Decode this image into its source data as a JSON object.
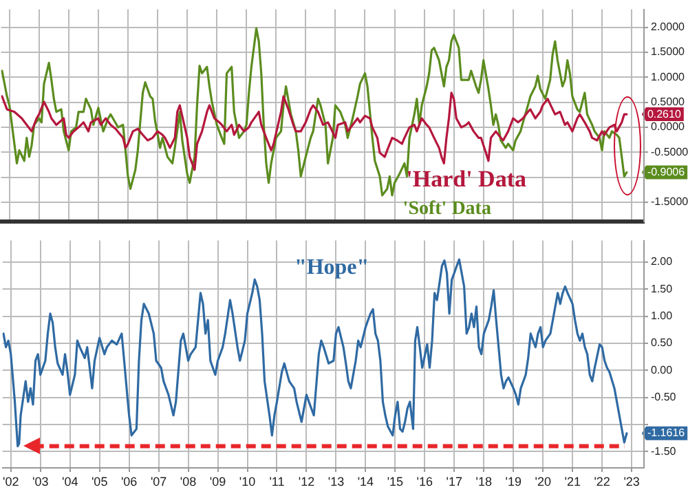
{
  "chart_data": [
    {
      "type": "line",
      "xlim": [
        "2002-03-20",
        "2023-12-01"
      ],
      "ylim": [
        -1.89,
        2.36
      ],
      "tick_labels": "y",
      "grid": true,
      "legend": false,
      "marker": "none",
      "line_style": "solid",
      "xticks": [
        {
          "value": "2002-07-01",
          "label": null
        },
        {
          "value": "2003-07-01",
          "label": null
        },
        {
          "value": "2004-07-01",
          "label": null
        },
        {
          "value": "2005-07-01",
          "label": null
        },
        {
          "value": "2006-07-01",
          "label": null
        },
        {
          "value": "2007-07-01",
          "label": null
        },
        {
          "value": "2008-07-01",
          "label": null
        },
        {
          "value": "2009-07-01",
          "label": null
        },
        {
          "value": "2010-07-01",
          "label": null
        },
        {
          "value": "2011-07-01",
          "label": null
        },
        {
          "value": "2012-07-01",
          "label": null
        },
        {
          "value": "2013-07-01",
          "label": null
        },
        {
          "value": "2014-07-01",
          "label": null
        },
        {
          "value": "2015-07-01",
          "label": null
        },
        {
          "value": "2016-07-01",
          "label": null
        },
        {
          "value": "2017-07-01",
          "label": null
        },
        {
          "value": "2018-07-01",
          "label": null
        },
        {
          "value": "2019-07-01",
          "label": null
        },
        {
          "value": "2020-07-01",
          "label": null
        },
        {
          "value": "2021-07-01",
          "label": null
        },
        {
          "value": "2022-07-01",
          "label": null
        },
        {
          "value": "2023-07-01",
          "label": null
        }
      ],
      "yticks": [
        {
          "value": 2,
          "label": "2.0000"
        },
        {
          "value": 1.5,
          "label": "1.5000"
        },
        {
          "value": 1,
          "label": "1.0000"
        },
        {
          "value": 0.5,
          "label": "0.5000"
        },
        {
          "value": 0,
          "label": "0.0000"
        },
        {
          "value": -0.5,
          "label": "-0.5000"
        },
        {
          "value": -1,
          "label": null
        },
        {
          "value": -1.5,
          "label": "-1.5000"
        }
      ],
      "annotations": [
        {
          "text": "0.2610",
          "x": "2023-05",
          "y": 0.261
        },
        {
          "text": "-0.9006",
          "x": "2023-05",
          "y": -0.9006
        }
      ],
      "series": [
        {
          "name": "'Hard' Data",
          "color": "#b5173d",
          "x": [
            "2002-04",
            "2002-06",
            "2002-09",
            "2002-12",
            "2003-02",
            "2003-04",
            "2003-06",
            "2003-07",
            "2003-09",
            "2003-11",
            "2003-12",
            "2004-02",
            "2004-05",
            "2004-06",
            "2004-07",
            "2004-09",
            "2004-11",
            "2005-01",
            "2005-03",
            "2005-04",
            "2005-07",
            "2005-08",
            "2005-10",
            "2005-12",
            "2006-02",
            "2006-05",
            "2006-06",
            "2006-07",
            "2006-09",
            "2006-11",
            "2007-01",
            "2007-03",
            "2007-05",
            "2007-07",
            "2007-09",
            "2007-10",
            "2007-12",
            "2008-02",
            "2008-03",
            "2008-04",
            "2008-07",
            "2008-08",
            "2008-10",
            "2008-11",
            "2009-01",
            "2009-03",
            "2009-04",
            "2009-06",
            "2009-08",
            "2009-09",
            "2009-11",
            "2010-01",
            "2010-02",
            "2010-04",
            "2010-06",
            "2010-08",
            "2010-09",
            "2010-12",
            "2011-01",
            "2011-03",
            "2011-05",
            "2011-06",
            "2011-09",
            "2011-10",
            "2011-12",
            "2012-02",
            "2012-03",
            "2012-05",
            "2012-07",
            "2012-09",
            "2012-10",
            "2012-12",
            "2013-02",
            "2013-04",
            "2013-05",
            "2013-07",
            "2013-08",
            "2013-11",
            "2013-12",
            "2014-02",
            "2014-04",
            "2014-05",
            "2014-07",
            "2014-09",
            "2014-10",
            "2014-12",
            "2015-01",
            "2015-03",
            "2015-04",
            "2015-06",
            "2015-08",
            "2015-10",
            "2015-11",
            "2016-01",
            "2016-03",
            "2016-04",
            "2016-06",
            "2016-08",
            "2016-09",
            "2016-11",
            "2017-01",
            "2017-02",
            "2017-03",
            "2017-04",
            "2017-05",
            "2017-06",
            "2017-07",
            "2017-08",
            "2017-10",
            "2017-12",
            "2018-01",
            "2018-03",
            "2018-05",
            "2018-06",
            "2018-08",
            "2018-09",
            "2018-10",
            "2018-12",
            "2019-02",
            "2019-03",
            "2019-05",
            "2019-07",
            "2019-09",
            "2019-11",
            "2020-01",
            "2020-02",
            "2020-04",
            "2020-06",
            "2020-07",
            "2020-09",
            "2020-11",
            "2020-12",
            "2021-02",
            "2021-04",
            "2021-05",
            "2021-07",
            "2021-09",
            "2021-10",
            "2021-12",
            "2022-02",
            "2022-03",
            "2022-05",
            "2022-07",
            "2022-08",
            "2022-10",
            "2022-12",
            "2023-01",
            "2023-03",
            "2023-04",
            "2023-05"
          ],
          "values": [
            0.62,
            0.36,
            0.31,
            0.18,
            0.05,
            -0.08,
            0.18,
            0.26,
            0.51,
            0.31,
            0.18,
            0.05,
            0.18,
            -0.15,
            -0.21,
            -0.08,
            0.0,
            0.1,
            -0.08,
            0.1,
            0.18,
            0.05,
            0.18,
            0.05,
            -0.03,
            -0.21,
            -0.41,
            -0.33,
            -0.08,
            -0.03,
            -0.15,
            -0.26,
            -0.21,
            -0.08,
            -0.15,
            -0.21,
            -0.41,
            -0.21,
            0.31,
            0.44,
            -0.21,
            -0.59,
            -0.85,
            -0.33,
            -0.08,
            0.31,
            0.44,
            0.18,
            0.1,
            0.05,
            -0.08,
            0.05,
            -0.15,
            0.05,
            -0.08,
            0.0,
            0.1,
            0.31,
            0.05,
            -0.21,
            -0.46,
            -0.33,
            0.31,
            0.62,
            0.36,
            0.05,
            -0.08,
            -0.08,
            0.1,
            0.36,
            0.44,
            0.31,
            0.05,
            0.1,
            0.0,
            -0.21,
            0.05,
            0.1,
            -0.08,
            0.05,
            0.18,
            0.1,
            0.23,
            0.18,
            0.0,
            -0.21,
            -0.51,
            -0.59,
            -0.46,
            -0.21,
            -0.26,
            -0.33,
            -0.21,
            0.0,
            0.05,
            -0.08,
            0.18,
            0.05,
            0.0,
            -0.21,
            -0.41,
            -0.59,
            -0.72,
            -0.21,
            0.18,
            0.69,
            0.57,
            0.18,
            0.0,
            0.05,
            0.1,
            -0.08,
            -0.21,
            -0.21,
            -0.51,
            -0.67,
            -0.21,
            -0.08,
            -0.21,
            -0.26,
            -0.08,
            0.18,
            0.1,
            0.18,
            0.31,
            0.36,
            0.18,
            0.31,
            0.44,
            0.57,
            0.36,
            0.26,
            0.31,
            0.05,
            0.1,
            -0.08,
            0.18,
            0.26,
            0.1,
            -0.08,
            -0.21,
            -0.26,
            -0.08,
            -0.15,
            0.0,
            0.05,
            -0.08,
            0.1,
            0.26,
            0.261
          ]
        },
        {
          "name": "'Soft' Data",
          "color": "#5b8c1e",
          "x": [
            "2002-04",
            "2002-06",
            "2002-07",
            "2002-09",
            "2002-10",
            "2002-11",
            "2003-01",
            "2003-02",
            "2003-03",
            "2003-04",
            "2003-05",
            "2003-07",
            "2003-08",
            "2003-09",
            "2003-11",
            "2003-12",
            "2004-01",
            "2004-02",
            "2004-04",
            "2004-05",
            "2004-07",
            "2004-08",
            "2004-10",
            "2004-11",
            "2005-01",
            "2005-02",
            "2005-04",
            "2005-05",
            "2005-07",
            "2005-09",
            "2005-11",
            "2005-12",
            "2006-03",
            "2006-05",
            "2006-06",
            "2006-07",
            "2006-08",
            "2006-10",
            "2006-11",
            "2007-01",
            "2007-02",
            "2007-04",
            "2007-05",
            "2007-06",
            "2007-08",
            "2007-09",
            "2007-11",
            "2008-01",
            "2008-02",
            "2008-04",
            "2008-05",
            "2008-07",
            "2008-08",
            "2008-10",
            "2008-11",
            "2008-12",
            "2009-01",
            "2009-03",
            "2009-04",
            "2009-05",
            "2009-07",
            "2009-09",
            "2009-10",
            "2009-11",
            "2010-01",
            "2010-02",
            "2010-04",
            "2010-06",
            "2010-07",
            "2010-08",
            "2010-09",
            "2010-11",
            "2010-12",
            "2011-01",
            "2011-02",
            "2011-03",
            "2011-04",
            "2011-05",
            "2011-07",
            "2011-09",
            "2011-10",
            "2011-11",
            "2012-01",
            "2012-03",
            "2012-04",
            "2012-05",
            "2012-07",
            "2012-09",
            "2012-10",
            "2012-12",
            "2013-01",
            "2013-03",
            "2013-04",
            "2013-06",
            "2013-07",
            "2013-09",
            "2013-11",
            "2013-12",
            "2014-02",
            "2014-04",
            "2014-05",
            "2014-07",
            "2014-08",
            "2014-09",
            "2014-10",
            "2014-11",
            "2015-01",
            "2015-02",
            "2015-04",
            "2015-05",
            "2015-06",
            "2015-07",
            "2015-09",
            "2015-11",
            "2015-12",
            "2016-01",
            "2016-03",
            "2016-04",
            "2016-05",
            "2016-06",
            "2016-08",
            "2016-09",
            "2016-10",
            "2016-11",
            "2017-01",
            "2017-02",
            "2017-03",
            "2017-04",
            "2017-05",
            "2017-06",
            "2017-07",
            "2017-09",
            "2017-10",
            "2017-11",
            "2018-01",
            "2018-02",
            "2018-04",
            "2018-05",
            "2018-06",
            "2018-07",
            "2018-09",
            "2018-10",
            "2018-11",
            "2018-12",
            "2019-01",
            "2019-02",
            "2019-04",
            "2019-05",
            "2019-07",
            "2019-08",
            "2019-10",
            "2019-11",
            "2020-01",
            "2020-02",
            "2020-04",
            "2020-05",
            "2020-06",
            "2020-08",
            "2020-10",
            "2020-11",
            "2020-12",
            "2021-01",
            "2021-03",
            "2021-04",
            "2021-05",
            "2021-06",
            "2021-07",
            "2021-09",
            "2021-10",
            "2021-12",
            "2022-01",
            "2022-03",
            "2022-04",
            "2022-06",
            "2022-07",
            "2022-08",
            "2022-10",
            "2022-11",
            "2023-01",
            "2023-02",
            "2023-03",
            "2023-04",
            "2023-05"
          ],
          "values": [
            1.13,
            0.62,
            0.44,
            -0.33,
            -0.72,
            -0.46,
            -0.67,
            -0.21,
            -0.59,
            -0.36,
            0.05,
            0.18,
            0.1,
            0.87,
            1.29,
            0.95,
            0.57,
            0.31,
            0.36,
            -0.08,
            -0.46,
            -0.08,
            0.0,
            0.31,
            0.31,
            0.57,
            0.36,
            0.05,
            0.39,
            -0.08,
            0.18,
            0.26,
            0.0,
            0.05,
            -0.46,
            -0.98,
            -1.23,
            -0.85,
            -0.46,
            0.69,
            0.9,
            0.62,
            0.57,
            0.13,
            -0.41,
            -0.21,
            -0.59,
            -0.72,
            -0.41,
            0.31,
            -0.26,
            -0.93,
            -1.11,
            -0.59,
            0.44,
            1.23,
            1.08,
            1.21,
            0.82,
            0.51,
            0.05,
            -0.21,
            -0.33,
            1.08,
            1.21,
            0.31,
            -0.21,
            -0.08,
            0.05,
            0.69,
            1.21,
            1.98,
            1.72,
            1.08,
            0.05,
            -0.72,
            -1.11,
            -0.72,
            -0.21,
            -0.08,
            0.44,
            0.82,
            0.26,
            -0.08,
            -0.46,
            -0.98,
            -0.59,
            -0.21,
            -0.08,
            0.57,
            0.44,
            0.05,
            -0.72,
            -0.21,
            0.44,
            0.31,
            0.05,
            -0.21,
            0.18,
            0.62,
            0.87,
            1.08,
            0.82,
            0.31,
            -0.21,
            -0.67,
            -0.98,
            -1.36,
            -1.23,
            -0.98,
            -1.36,
            -1.11,
            -0.93,
            -0.72,
            -0.98,
            -0.21,
            0.26,
            0.57,
            0.05,
            0.44,
            0.82,
            1.08,
            1.54,
            1.59,
            1.34,
            1.08,
            0.82,
            1.21,
            1.34,
            1.72,
            1.85,
            1.59,
            0.95,
            0.95,
            0.95,
            1.13,
            0.82,
            0.69,
            0.95,
            1.34,
            0.77,
            0.44,
            0.05,
            0.26,
            0.05,
            -0.26,
            -0.41,
            -0.33,
            -0.46,
            -0.26,
            -0.08,
            0.1,
            0.44,
            0.62,
            0.82,
            1.03,
            0.77,
            0.57,
            0.95,
            1.46,
            1.72,
            1.34,
            0.82,
            0.95,
            1.34,
            1.08,
            0.62,
            0.36,
            0.31,
            0.69,
            0.26,
            0.05,
            -0.08,
            -0.21,
            -0.46,
            -0.08,
            -0.21,
            -0.08,
            -0.15,
            -0.21,
            -0.59,
            -0.98,
            -0.9006
          ]
        }
      ]
    },
    {
      "type": "line",
      "xlim": [
        "2002-03-20",
        "2023-12-01"
      ],
      "ylim": [
        -1.8,
        2.4
      ],
      "grid": true,
      "legend": false,
      "marker": "none",
      "line_style": "solid",
      "xticks": [
        {
          "value": "2002-07-01",
          "label": "'02"
        },
        {
          "value": "2003-07-01",
          "label": "'03"
        },
        {
          "value": "2004-07-01",
          "label": "'04"
        },
        {
          "value": "2005-07-01",
          "label": "'05"
        },
        {
          "value": "2006-07-01",
          "label": "'06"
        },
        {
          "value": "2007-07-01",
          "label": "'07"
        },
        {
          "value": "2008-07-01",
          "label": "'08"
        },
        {
          "value": "2009-07-01",
          "label": "'09"
        },
        {
          "value": "2010-07-01",
          "label": "'10"
        },
        {
          "value": "2011-07-01",
          "label": "'11"
        },
        {
          "value": "2012-07-01",
          "label": "'12"
        },
        {
          "value": "2013-07-01",
          "label": "'13"
        },
        {
          "value": "2014-07-01",
          "label": "'14"
        },
        {
          "value": "2015-07-01",
          "label": "'15"
        },
        {
          "value": "2016-07-01",
          "label": "'16"
        },
        {
          "value": "2017-07-01",
          "label": "'17"
        },
        {
          "value": "2018-07-01",
          "label": "'18"
        },
        {
          "value": "2019-07-01",
          "label": "'19"
        },
        {
          "value": "2020-07-01",
          "label": "'20"
        },
        {
          "value": "2021-07-01",
          "label": "'21"
        },
        {
          "value": "2022-07-01",
          "label": "'22"
        },
        {
          "value": "2023-07-01",
          "label": "'23"
        }
      ],
      "yticks": [
        {
          "value": 2,
          "label": "2.00"
        },
        {
          "value": 1.5,
          "label": "1.50"
        },
        {
          "value": 1,
          "label": "1.00"
        },
        {
          "value": 0.5,
          "label": "0.50"
        },
        {
          "value": 0,
          "label": "0.00"
        },
        {
          "value": -0.5,
          "label": "-0.50"
        },
        {
          "value": -1,
          "label": null
        },
        {
          "value": -1.5,
          "label": "-1.50"
        }
      ],
      "annotations": [
        {
          "text": "-1.1616",
          "x": "2023-05",
          "y": -1.1616
        }
      ],
      "ref_lines": [
        {
          "axis": "y",
          "value": -1.4,
          "color": "#e8262a",
          "line_style": "dashed"
        }
      ],
      "series": [
        {
          "name": "\"Hope\"",
          "color": "#2f6aa3",
          "x": [
            "2002-04",
            "2002-05",
            "2002-06",
            "2002-07",
            "2002-08-20",
            "2002-09-05",
            "2002-09-25",
            "2002-10-12",
            "2002-11",
            "2003-01",
            "2003-02",
            "2003-03",
            "2003-04",
            "2003-05",
            "2003-06",
            "2003-07",
            "2003-09",
            "2003-10",
            "2003-11",
            "2003-12",
            "2004-01",
            "2004-02",
            "2004-04",
            "2004-05",
            "2004-06",
            "2004-07",
            "2004-09",
            "2004-10",
            "2004-11",
            "2005-01",
            "2005-02",
            "2005-03",
            "2005-04",
            "2005-05",
            "2005-07",
            "2005-09",
            "2005-10",
            "2005-12",
            "2006-02",
            "2006-04",
            "2006-05",
            "2006-06",
            "2006-07",
            "2006-08",
            "2006-10",
            "2006-11",
            "2006-12",
            "2007-01",
            "2007-03",
            "2007-05",
            "2007-06",
            "2007-08",
            "2007-09",
            "2007-11",
            "2008-01",
            "2008-02",
            "2008-04",
            "2008-05",
            "2008-07",
            "2008-08",
            "2008-10",
            "2008-12",
            "2009-01",
            "2009-02",
            "2009-03",
            "2009-04",
            "2009-06",
            "2009-07",
            "2009-09",
            "2009-10",
            "2009-12",
            "2010-01",
            "2010-03",
            "2010-04",
            "2010-06",
            "2010-07",
            "2010-09",
            "2010-10",
            "2010-11",
            "2010-12",
            "2011-01",
            "2011-02",
            "2011-04",
            "2011-05",
            "2011-06",
            "2011-07",
            "2011-09",
            "2011-10",
            "2011-12",
            "2012-02",
            "2012-03",
            "2012-05",
            "2012-07",
            "2012-08",
            "2012-10",
            "2012-12",
            "2013-01",
            "2013-02",
            "2013-04",
            "2013-06",
            "2013-07",
            "2013-08",
            "2013-10",
            "2013-11",
            "2013-12",
            "2014-01",
            "2014-03",
            "2014-04",
            "2014-05",
            "2014-07",
            "2014-08",
            "2014-09",
            "2014-10",
            "2014-11",
            "2014-12",
            "2015-01",
            "2015-02",
            "2015-03",
            "2015-04",
            "2015-06",
            "2015-07",
            "2015-08",
            "2015-09",
            "2015-10",
            "2015-11",
            "2015-12",
            "2016-01",
            "2016-02-10",
            "2016-03-05",
            "2016-04",
            "2016-05",
            "2016-06",
            "2016-08",
            "2016-09",
            "2016-10",
            "2016-11",
            "2016-12",
            "2017-02",
            "2017-03",
            "2017-04",
            "2017-05",
            "2017-06",
            "2017-07",
            "2017-08",
            "2017-09",
            "2017-11",
            "2017-12",
            "2018-01",
            "2018-02",
            "2018-03",
            "2018-04",
            "2018-05",
            "2018-06",
            "2018-07",
            "2018-09",
            "2018-10",
            "2018-11",
            "2018-12",
            "2019-01",
            "2019-02",
            "2019-03",
            "2019-04",
            "2019-05",
            "2019-07",
            "2019-08",
            "2019-09",
            "2019-10",
            "2019-12",
            "2020-01",
            "2020-02",
            "2020-03",
            "2020-04",
            "2020-05",
            "2020-06",
            "2020-07",
            "2020-08",
            "2020-10",
            "2020-11",
            "2020-12",
            "2021-01",
            "2021-02",
            "2021-03",
            "2021-04",
            "2021-05",
            "2021-07",
            "2021-08",
            "2021-09",
            "2021-10",
            "2021-11",
            "2021-12",
            "2022-01",
            "2022-02",
            "2022-03",
            "2022-04",
            "2022-06",
            "2022-07",
            "2022-08",
            "2022-09",
            "2022-10",
            "2022-12",
            "2023-01",
            "2023-02",
            "2023-03",
            "2023-04",
            "2023-05"
          ],
          "values": [
            0.68,
            0.43,
            0.55,
            0.3,
            -0.58,
            -0.95,
            -1.4,
            -1.35,
            -0.83,
            -0.2,
            -0.58,
            -0.33,
            -0.63,
            0.18,
            0.3,
            -0.08,
            0.18,
            0.68,
            1.05,
            0.88,
            0.43,
            0.13,
            -0.08,
            0.3,
            -0.03,
            -0.45,
            -0.08,
            0.55,
            0.43,
            0.23,
            0.43,
            0.05,
            -0.33,
            0.18,
            0.6,
            0.3,
            0.43,
            0.55,
            0.48,
            0.68,
            0.18,
            -0.33,
            -0.83,
            -1.2,
            -1.08,
            0.18,
            0.93,
            1.23,
            1.05,
            0.68,
            0.18,
            0.05,
            -0.2,
            -0.45,
            -0.83,
            -0.58,
            0.55,
            0.68,
            0.18,
            0.3,
            0.43,
            1.43,
            1.23,
            0.68,
            0.93,
            0.18,
            -0.08,
            0.18,
            0.43,
            0.68,
            1.3,
            1.05,
            0.43,
            0.18,
            0.55,
            1.05,
            1.43,
            1.68,
            1.55,
            1.3,
            0.68,
            -0.2,
            -0.83,
            -1.2,
            -0.83,
            -0.58,
            -0.03,
            0.13,
            -0.2,
            -0.33,
            -0.58,
            -0.95,
            -0.45,
            -0.58,
            -0.83,
            0.3,
            0.55,
            0.43,
            0.13,
            0.18,
            0.68,
            0.8,
            0.43,
            0.13,
            -0.2,
            -0.33,
            0.18,
            0.55,
            0.43,
            0.8,
            0.93,
            1.05,
            1.13,
            0.68,
            0.55,
            0.18,
            -0.58,
            -0.83,
            -1.03,
            -1.2,
            -0.83,
            -0.58,
            -1.08,
            -1.13,
            -0.95,
            -0.7,
            -0.58,
            -1.08,
            0.55,
            0.8,
            0.43,
            0.05,
            0.48,
            0.05,
            0.55,
            1.43,
            1.3,
            1.93,
            2.03,
            1.8,
            1.05,
            1.68,
            1.8,
            1.93,
            2.05,
            1.55,
            0.68,
            0.8,
            1.05,
            0.8,
            1.18,
            0.43,
            0.3,
            0.68,
            0.93,
            1.18,
            1.48,
            0.93,
            0.43,
            -0.08,
            -0.33,
            -0.2,
            -0.13,
            -0.33,
            -0.45,
            -0.63,
            -0.33,
            -0.08,
            0.23,
            0.68,
            0.55,
            0.43,
            0.68,
            0.8,
            0.43,
            0.55,
            0.68,
            0.93,
            1.18,
            1.43,
            1.23,
            1.43,
            1.55,
            1.43,
            1.23,
            0.93,
            0.68,
            0.55,
            0.68,
            0.43,
            0.3,
            -0.08,
            -0.2,
            0.05,
            0.48,
            0.43,
            0.18,
            0.05,
            -0.03,
            -0.33,
            -0.58,
            -0.83,
            -1.08,
            -1.33,
            -1.1616
          ]
        }
      ]
    }
  ]
}
